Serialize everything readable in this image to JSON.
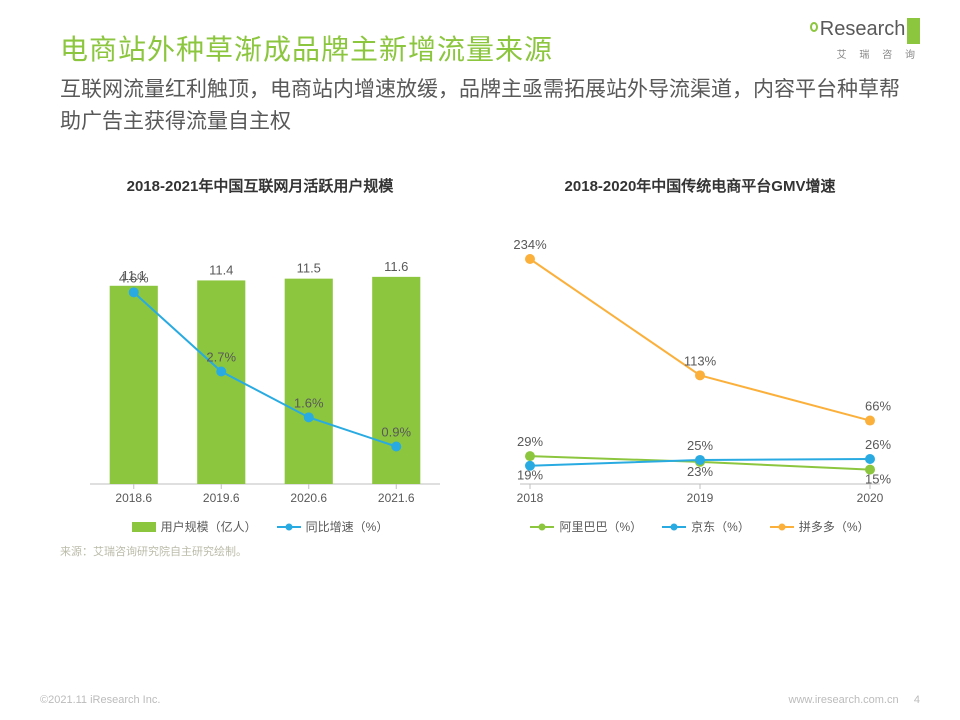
{
  "header": {
    "title": "电商站外种草渐成品牌主新增流量来源",
    "subtitle": "互联网流量红利触顶，电商站内增速放缓，品牌主亟需拓展站外导流渠道，内容平台种草帮助广告主获得流量自主权"
  },
  "logo": {
    "text": "Research",
    "sub": "艾 瑞 咨 询"
  },
  "chart_left": {
    "title": "2018-2021年中国互联网月活跃用户规模",
    "type": "bar+line",
    "categories": [
      "2018.6",
      "2019.6",
      "2020.6",
      "2021.6"
    ],
    "bar_values": [
      11.1,
      11.4,
      11.5,
      11.6
    ],
    "bar_color": "#8cc63f",
    "bar_ylim": [
      0,
      14
    ],
    "line_values": [
      4.6,
      2.7,
      1.6,
      0.9
    ],
    "line_color": "#29abe2",
    "line_ylim": [
      0,
      6
    ],
    "marker_radius": 5,
    "line_width": 2,
    "bar_width": 0.55,
    "legend": [
      {
        "type": "bar",
        "label": "用户规模（亿人）",
        "color": "#8cc63f"
      },
      {
        "type": "line",
        "label": "同比增速（%）",
        "color": "#29abe2"
      }
    ],
    "label_fontsize": 13,
    "axis_fontsize": 12
  },
  "chart_right": {
    "title": "2018-2020年中国传统电商平台GMV增速",
    "type": "multiline",
    "categories": [
      "2018",
      "2019",
      "2020"
    ],
    "series": [
      {
        "name": "阿里巴巴（%）",
        "color": "#8cc63f",
        "values": [
          29,
          23,
          15
        ]
      },
      {
        "name": "京东（%）",
        "color": "#29abe2",
        "values": [
          19,
          25,
          26
        ]
      },
      {
        "name": "拼多多（%）",
        "color": "#fbb03b",
        "values": [
          234,
          113,
          66
        ]
      }
    ],
    "ylim": [
      0,
      260
    ],
    "marker_radius": 5,
    "line_width": 2,
    "label_fontsize": 13,
    "axis_fontsize": 12,
    "legend": [
      {
        "type": "line",
        "label": "阿里巴巴（%）",
        "color": "#8cc63f"
      },
      {
        "type": "line",
        "label": "京东（%）",
        "color": "#29abe2"
      },
      {
        "type": "line",
        "label": "拼多多（%）",
        "color": "#fbb03b"
      }
    ]
  },
  "source": "来源：艾瑞咨询研究院自主研究绘制。",
  "footer": {
    "copyright": "©2021.11 iResearch Inc.",
    "url": "www.iresearch.com.cn",
    "page": "4"
  }
}
